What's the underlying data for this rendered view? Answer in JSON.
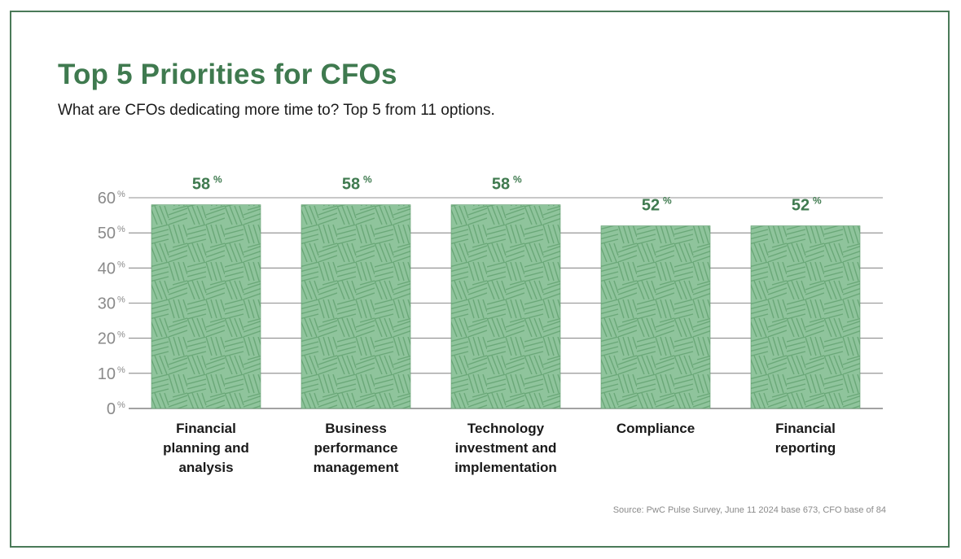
{
  "header": {
    "title": "Top 5 Priorities for CFOs",
    "subtitle": "What are CFOs dedicating more time to? Top 5 from 11 options."
  },
  "footer": {
    "source": "Source: PwC Pulse Survey, June 11 2024 base 673, CFO base of 84"
  },
  "colors": {
    "accent": "#3f7a4f",
    "bar_fill": "#8fc49c",
    "bar_stroke": "#5e9a6c",
    "grid": "#6b6b6b",
    "axis_text": "#8a8a8a"
  },
  "chart_data": {
    "type": "bar",
    "title": "Top 5 Priorities for CFOs",
    "xlabel": "",
    "ylabel": "",
    "ylim": [
      0,
      60
    ],
    "yticks": [
      0,
      10,
      20,
      30,
      40,
      50,
      60
    ],
    "tick_suffix": "%",
    "grid": true,
    "categories": [
      [
        "Financial",
        "planning and",
        "analysis"
      ],
      [
        "Business",
        "performance",
        "management"
      ],
      [
        "Technology",
        "investment and",
        "implementation"
      ],
      [
        "Compliance"
      ],
      [
        "Financial",
        "reporting"
      ]
    ],
    "values": [
      58,
      58,
      58,
      52,
      52
    ],
    "value_suffix": "%"
  }
}
